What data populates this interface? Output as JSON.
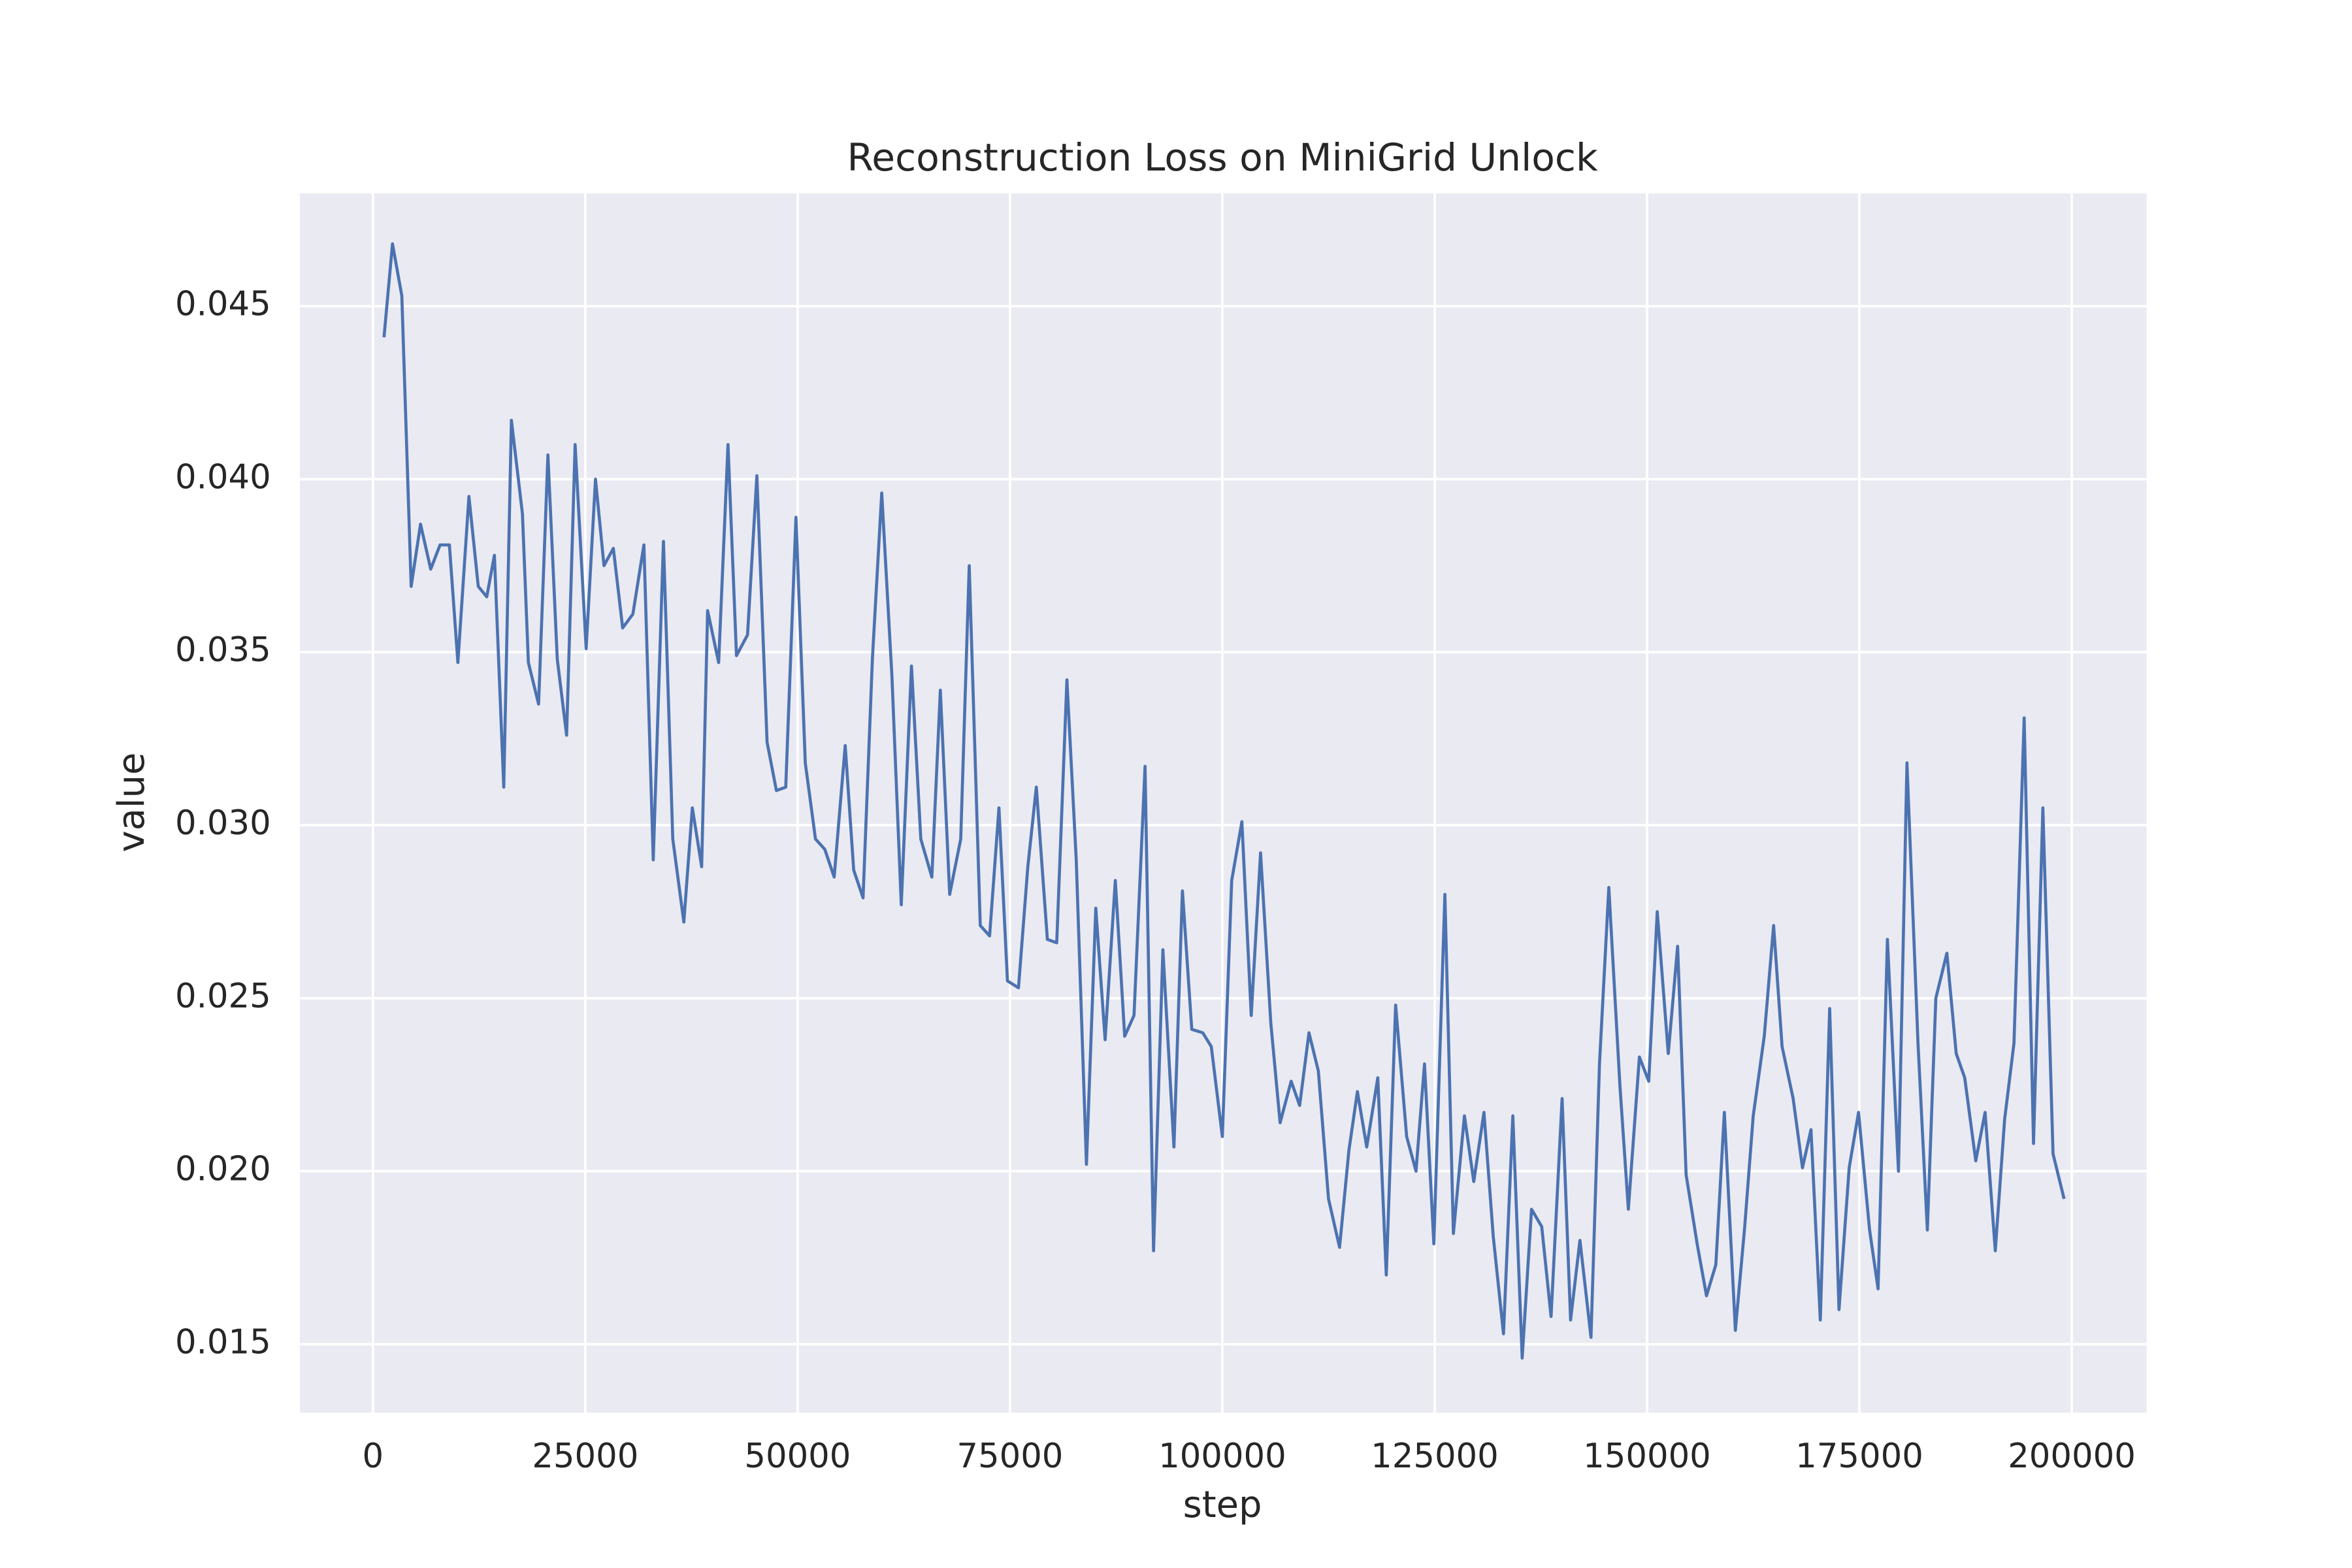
{
  "chart_data": {
    "type": "line",
    "title": "Reconstruction Loss on MiniGrid Unlock",
    "xlabel": "step",
    "ylabel": "value",
    "color": "#4c72b0",
    "grid": true,
    "xlim": [
      -8600,
      208800
    ],
    "ylim": [
      0.01302,
      0.04826
    ],
    "xticks": [
      0,
      25000,
      50000,
      75000,
      100000,
      125000,
      150000,
      175000,
      200000
    ],
    "yticks": [
      0.015,
      {
        "value": 0.02,
        "label": "0.020"
      },
      0.025,
      {
        "value": 0.03,
        "label": "0.030"
      },
      0.035,
      {
        "value": 0.04,
        "label": "0.040"
      },
      0.045
    ],
    "x": [
      1300,
      2300,
      3400,
      4500,
      5600,
      6800,
      7900,
      9000,
      10000,
      11300,
      12400,
      13400,
      14300,
      15400,
      16300,
      17600,
      18300,
      19500,
      20600,
      21700,
      22800,
      23800,
      25100,
      26200,
      27200,
      28300,
      29400,
      30600,
      31900,
      33000,
      34200,
      35300,
      36600,
      37600,
      38700,
      39400,
      40700,
      41800,
      42800,
      44100,
      45200,
      46400,
      47500,
      48600,
      49800,
      50900,
      52100,
      53200,
      54300,
      55600,
      56600,
      57700,
      58800,
      59900,
      61100,
      62200,
      63400,
      64500,
      65800,
      66800,
      67900,
      69200,
      70200,
      71500,
      72600,
      73700,
      74700,
      76000,
      77100,
      78100,
      79400,
      80500,
      81700,
      82800,
      84000,
      85100,
      86200,
      87400,
      88500,
      89600,
      90900,
      91900,
      93000,
      94300,
      95300,
      96400,
      97700,
      98700,
      100000,
      101100,
      102300,
      103400,
      104500,
      105700,
      106800,
      108100,
      109100,
      110200,
      111300,
      112500,
      113800,
      114900,
      115900,
      117000,
      118300,
      119300,
      120400,
      121700,
      122800,
      123800,
      124900,
      126200,
      127200,
      128500,
      129600,
      130800,
      131900,
      133100,
      134200,
      135300,
      136400,
      137600,
      138700,
      140000,
      141000,
      142100,
      143400,
      144400,
      145500,
      146800,
      147800,
      149100,
      150200,
      151200,
      152500,
      153600,
      154600,
      155900,
      157000,
      158100,
      159100,
      160400,
      161500,
      162500,
      163800,
      164900,
      165900,
      167200,
      168300,
      169300,
      170400,
      171500,
      172600,
      173800,
      174900,
      176200,
      177200,
      178300,
      179600,
      180600,
      181900,
      183000,
      184000,
      185300,
      186400,
      187400,
      188700,
      189800,
      191000,
      192100,
      193200,
      194400,
      195500,
      196600,
      197800,
      199100
    ],
    "values": [
      0.0441,
      0.0468,
      0.0453,
      0.0369,
      0.0387,
      0.0374,
      0.0381,
      0.0381,
      0.0347,
      0.0395,
      0.0369,
      0.0366,
      0.0378,
      0.0311,
      0.0417,
      0.039,
      0.0347,
      0.0335,
      0.0407,
      0.0348,
      0.0326,
      0.041,
      0.0351,
      0.04,
      0.0375,
      0.038,
      0.0357,
      0.0361,
      0.0381,
      0.029,
      0.0382,
      0.0296,
      0.0272,
      0.0305,
      0.0288,
      0.0362,
      0.0347,
      0.041,
      0.0349,
      0.0355,
      0.0401,
      0.0324,
      0.031,
      0.0311,
      0.0389,
      0.0318,
      0.0296,
      0.0293,
      0.0285,
      0.0323,
      0.0287,
      0.0279,
      0.0348,
      0.0396,
      0.0343,
      0.0277,
      0.0346,
      0.0296,
      0.0285,
      0.0339,
      0.028,
      0.0296,
      0.0375,
      0.0271,
      0.0268,
      0.0305,
      0.0255,
      0.0253,
      0.0288,
      0.0311,
      0.0267,
      0.0266,
      0.0342,
      0.029,
      0.0202,
      0.0276,
      0.0238,
      0.0284,
      0.0239,
      0.0245,
      0.0317,
      0.0177,
      0.0264,
      0.0207,
      0.0281,
      0.0241,
      0.024,
      0.0236,
      0.021,
      0.0284,
      0.0301,
      0.0245,
      0.0292,
      0.0243,
      0.0214,
      0.0226,
      0.0219,
      0.024,
      0.0229,
      0.0192,
      0.0178,
      0.0206,
      0.0223,
      0.0207,
      0.0227,
      0.017,
      0.0248,
      0.021,
      0.02,
      0.0231,
      0.0179,
      0.028,
      0.0182,
      0.0216,
      0.0197,
      0.0217,
      0.0181,
      0.0153,
      0.0216,
      0.0146,
      0.0189,
      0.0184,
      0.0158,
      0.0221,
      0.0157,
      0.018,
      0.0152,
      0.0231,
      0.0282,
      0.0225,
      0.0189,
      0.0233,
      0.0226,
      0.0275,
      0.0234,
      0.0265,
      0.0199,
      0.0179,
      0.0164,
      0.0173,
      0.0217,
      0.0154,
      0.0184,
      0.0216,
      0.0239,
      0.0271,
      0.0236,
      0.0221,
      0.0201,
      0.0212,
      0.0157,
      0.0247,
      0.016,
      0.0201,
      0.0217,
      0.0183,
      0.0166,
      0.0267,
      0.02,
      0.0318,
      0.0237,
      0.0183,
      0.025,
      0.0263,
      0.0234,
      0.0227,
      0.0203,
      0.0217,
      0.0177,
      0.0215,
      0.0237,
      0.0331,
      0.0208,
      0.0305,
      0.0205,
      0.0192
    ]
  }
}
